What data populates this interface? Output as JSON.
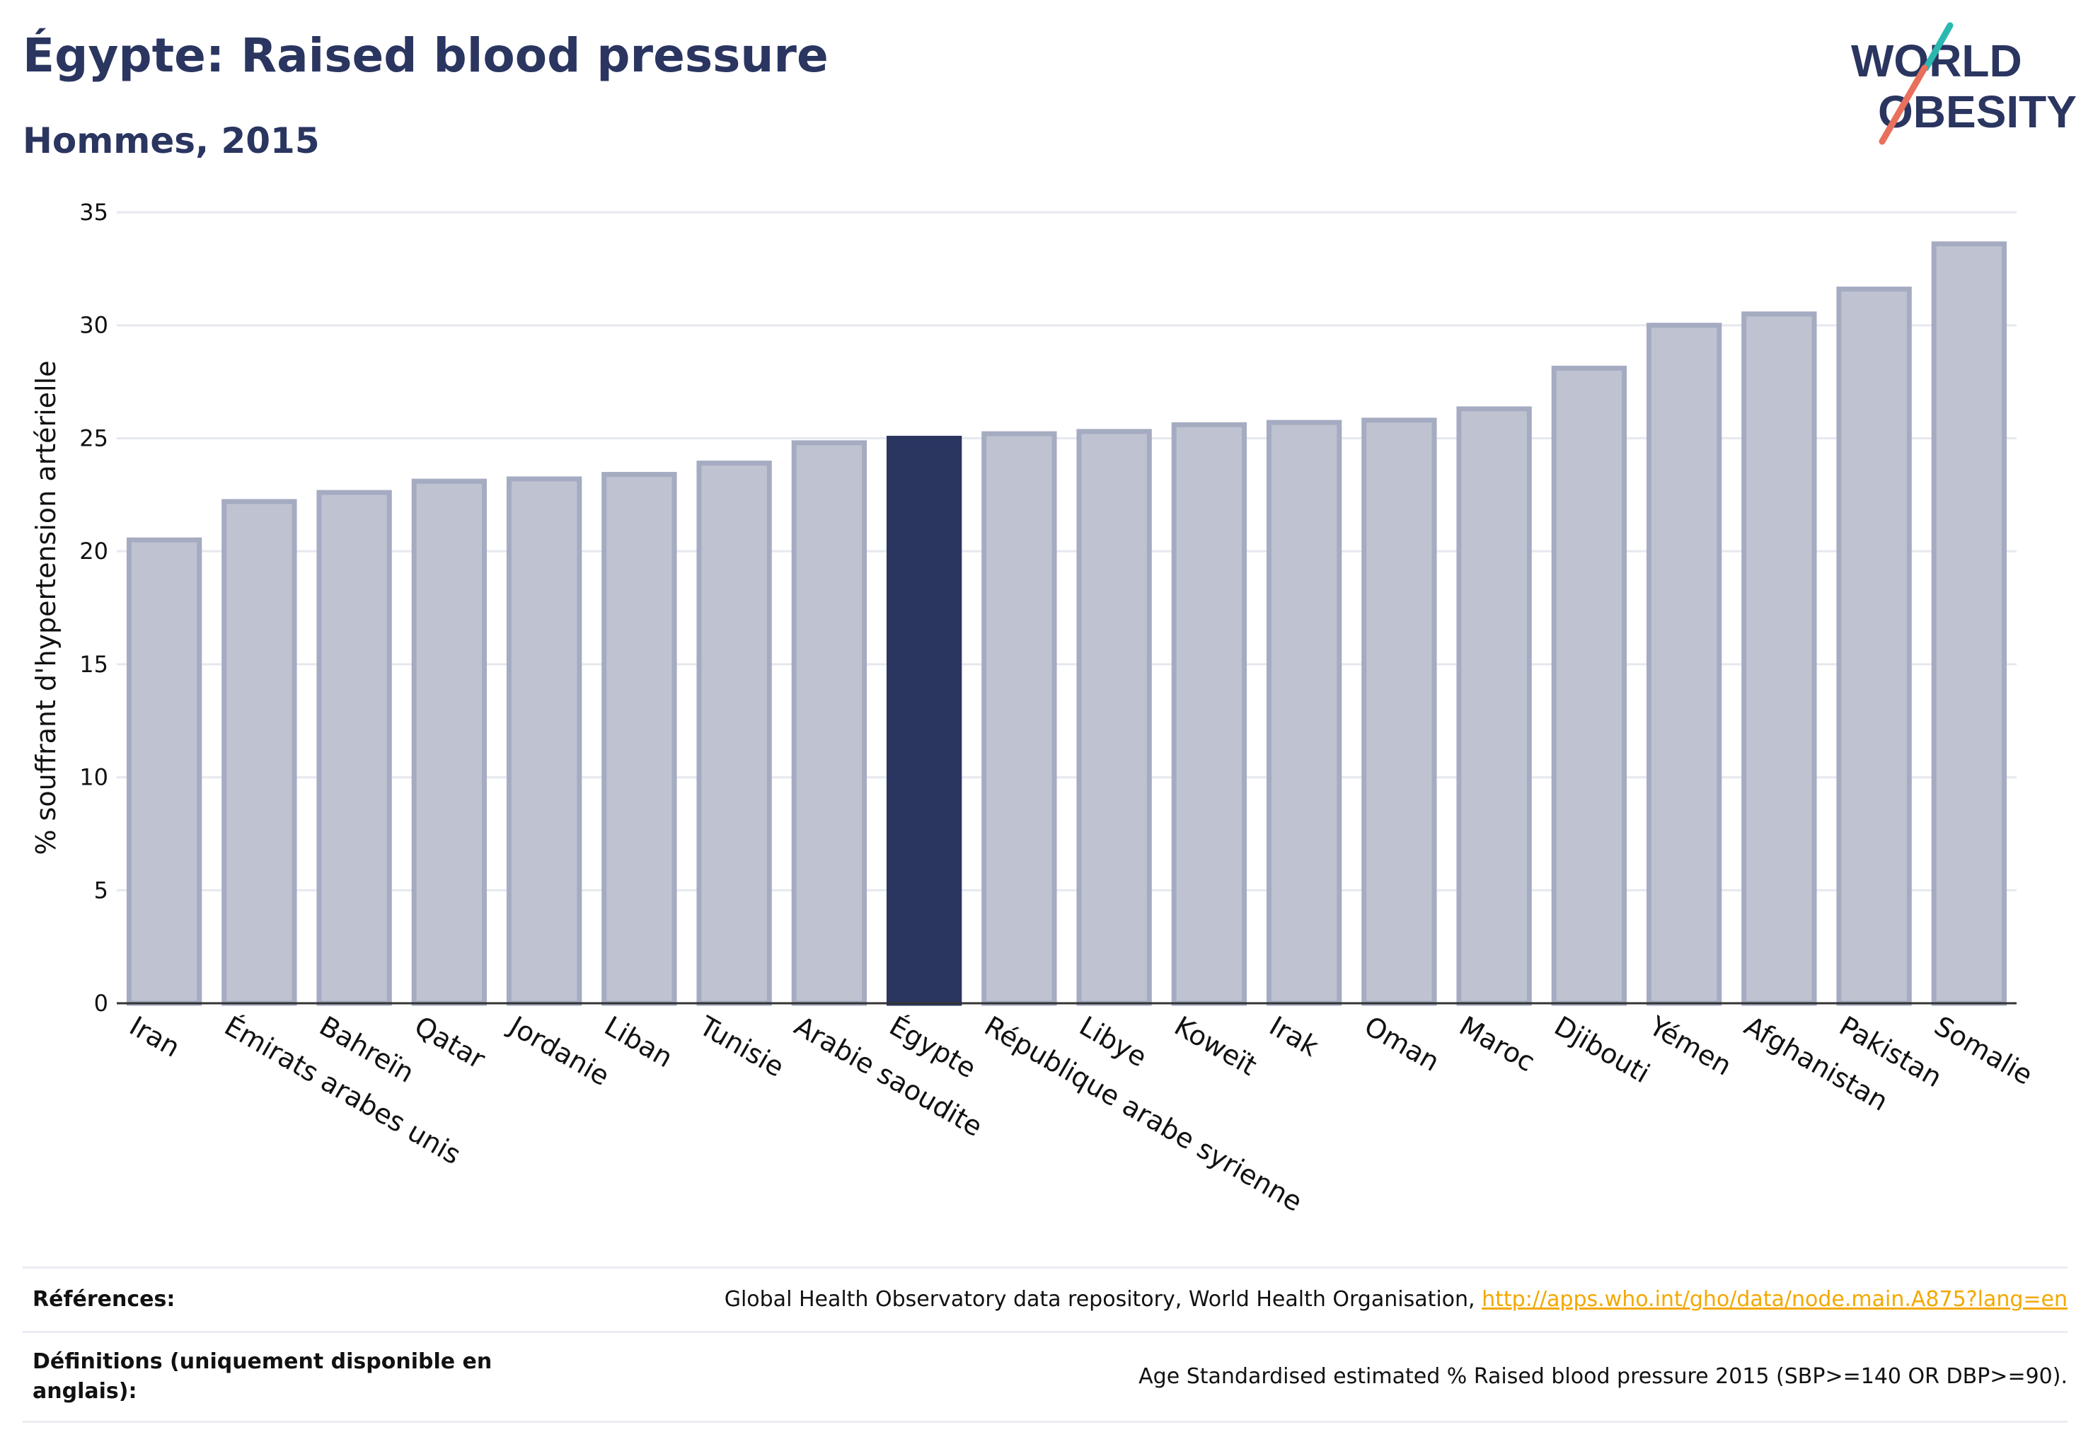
{
  "header": {
    "title": "Égypte: Raised blood pressure",
    "subtitle": "Hommes, 2015"
  },
  "logo": {
    "line1": "WORLD",
    "line2": "OBESITY",
    "icon": "world-obesity-logo"
  },
  "colors": {
    "highlight_bar": "#2a3560",
    "other_bar_fill": "#bfc3d1",
    "other_bar_stroke": "#a5abc1",
    "text": "#2a3560",
    "link": "#f3a800"
  },
  "chart_data": {
    "type": "bar",
    "title": "Égypte: Raised blood pressure",
    "subtitle": "Hommes, 2015",
    "xlabel": "",
    "ylabel": "% souffrant d'hypertension artérielle",
    "ylim": [
      0,
      35
    ],
    "yticks": [
      0,
      5,
      10,
      15,
      20,
      25,
      30,
      35
    ],
    "grid": true,
    "highlight": "Égypte",
    "categories": [
      "Iran",
      "Émirats arabes unis",
      "Bahreïn",
      "Qatar",
      "Jordanie",
      "Liban",
      "Tunisie",
      "Arabie saoudite",
      "Égypte",
      "République arabe syrienne",
      "Libye",
      "Koweït",
      "Irak",
      "Oman",
      "Maroc",
      "Djibouti",
      "Yémen",
      "Afghanistan",
      "Pakistan",
      "Somalie"
    ],
    "values": [
      20.5,
      22.2,
      22.6,
      23.1,
      23.2,
      23.4,
      23.9,
      24.8,
      25.0,
      25.2,
      25.3,
      25.6,
      25.7,
      25.8,
      26.3,
      28.1,
      30.0,
      30.5,
      31.6,
      33.6
    ]
  },
  "references": {
    "refs_label": "Références:",
    "refs_text": "Global Health Observatory data repository, World Health Organisation,",
    "refs_link": "http://apps.who.int/gho/data/node.main.A875?lang=en",
    "defs_label": "Définitions (uniquement disponible en anglais):",
    "defs_text": "Age Standardised estimated % Raised blood pressure 2015 (SBP>=140 OR DBP>=90)."
  }
}
